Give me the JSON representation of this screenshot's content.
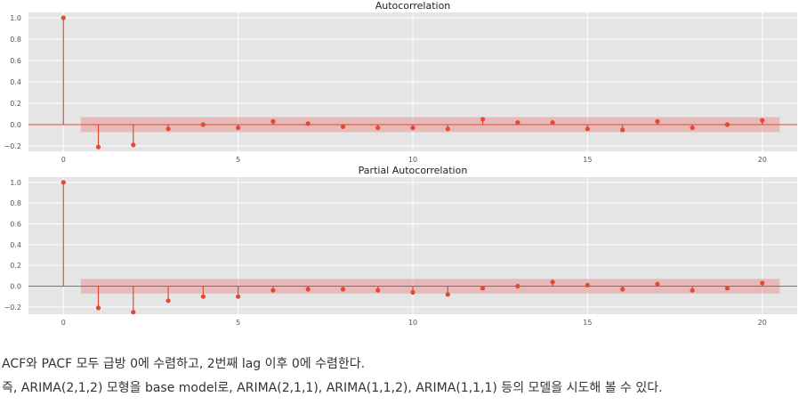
{
  "colors": {
    "stem": "#e24a33",
    "band": "#e89893",
    "panel": "#e5e5e5",
    "grid": "#ffffff",
    "tick_text": "#555555",
    "title_text": "#222222"
  },
  "chart_data": [
    {
      "type": "scatter",
      "title": "Autocorrelation",
      "xlabel": "",
      "ylabel": "",
      "xlim": [
        -1,
        21
      ],
      "ylim": [
        -0.25,
        1.05
      ],
      "xticks": [
        0,
        5,
        10,
        15,
        20
      ],
      "yticks": [
        1.0,
        0.8,
        0.6,
        0.4,
        0.2,
        0.0,
        -0.2
      ],
      "ytick_labels": [
        "1.0",
        "0.8",
        "0.6",
        "0.4",
        "0.2",
        "0.0",
        "−0.2"
      ],
      "grid": true,
      "confidence_band": 0.07,
      "x": [
        0,
        1,
        2,
        3,
        4,
        5,
        6,
        7,
        8,
        9,
        10,
        11,
        12,
        13,
        14,
        15,
        16,
        17,
        18,
        19,
        20
      ],
      "values": [
        1.0,
        -0.21,
        -0.19,
        -0.04,
        0.0,
        -0.03,
        0.03,
        0.01,
        -0.02,
        -0.03,
        -0.03,
        -0.04,
        0.05,
        0.02,
        0.02,
        -0.04,
        -0.05,
        0.03,
        -0.03,
        0.0,
        0.04
      ]
    },
    {
      "type": "scatter",
      "title": "Partial Autocorrelation",
      "xlabel": "",
      "ylabel": "",
      "xlim": [
        -1,
        21
      ],
      "ylim": [
        -0.27,
        1.05
      ],
      "xticks": [
        0,
        5,
        10,
        15,
        20
      ],
      "yticks": [
        1.0,
        0.8,
        0.6,
        0.4,
        0.2,
        0.0,
        -0.2
      ],
      "ytick_labels": [
        "1.0",
        "0.8",
        "0.6",
        "0.4",
        "0.2",
        "0.0",
        "−0.2"
      ],
      "grid": true,
      "confidence_band": 0.07,
      "x": [
        0,
        1,
        2,
        3,
        4,
        5,
        6,
        7,
        8,
        9,
        10,
        11,
        12,
        13,
        14,
        15,
        16,
        17,
        18,
        19,
        20
      ],
      "values": [
        1.0,
        -0.21,
        -0.25,
        -0.14,
        -0.1,
        -0.1,
        -0.04,
        -0.03,
        -0.03,
        -0.04,
        -0.06,
        -0.08,
        -0.02,
        0.0,
        0.04,
        0.01,
        -0.03,
        0.02,
        -0.04,
        -0.02,
        0.03
      ]
    }
  ],
  "caption": {
    "line1": "ACF와 PACF 모두 급방 0에 수렴하고, 2번째 lag 이후 0에 수렴한다.",
    "line2": "즉, ARIMA(2,1,2) 모형을 base model로, ARIMA(2,1,1), ARIMA(1,1,2), ARIMA(1,1,1) 등의 모델을 시도해 볼 수 있다."
  }
}
